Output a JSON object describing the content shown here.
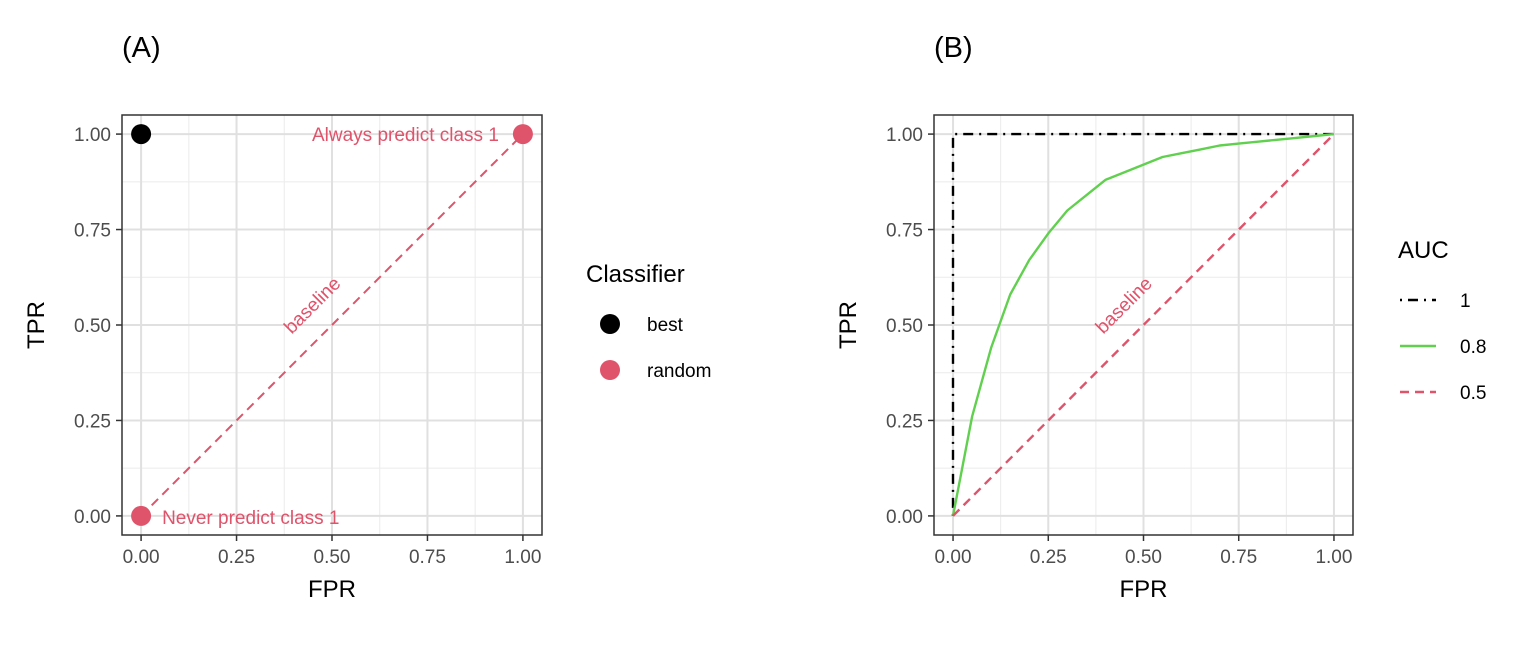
{
  "chart_data": [
    {
      "type": "scatter",
      "panel_tag": "(A)",
      "xlabel": "FPR",
      "ylabel": "TPR",
      "xlim": [
        -0.05,
        1.05
      ],
      "ylim": [
        -0.05,
        1.05
      ],
      "x_ticks": [
        "0.00",
        "0.25",
        "0.50",
        "0.75",
        "1.00"
      ],
      "y_ticks": [
        "0.00",
        "0.25",
        "0.50",
        "0.75",
        "1.00"
      ],
      "grid": true,
      "legend": {
        "title": "Classifier",
        "position": "right",
        "entries": [
          {
            "label": "best",
            "color": "#000000"
          },
          {
            "label": "random",
            "color": "#DF536B"
          }
        ]
      },
      "points": [
        {
          "x": 0,
          "y": 1,
          "series": "best",
          "color": "#000000"
        },
        {
          "x": 1,
          "y": 1,
          "series": "random",
          "color": "#DF536B"
        },
        {
          "x": 0,
          "y": 0,
          "series": "random",
          "color": "#DF536B"
        }
      ],
      "baseline": {
        "from": [
          0,
          0
        ],
        "to": [
          1,
          1
        ],
        "style": "dashed",
        "color": "#DF536B"
      },
      "annotations": [
        {
          "text": "Always predict class 1",
          "x": 1,
          "y": 1,
          "anchor": "end",
          "color": "#DF536B"
        },
        {
          "text": "Never predict class 1",
          "x": 0,
          "y": 0,
          "anchor": "start",
          "color": "#DF536B"
        },
        {
          "text": "baseline",
          "x": 0.46,
          "y": 0.54,
          "rotate": -45,
          "color": "#DF536B"
        }
      ]
    },
    {
      "type": "line",
      "panel_tag": "(B)",
      "xlabel": "FPR",
      "ylabel": "TPR",
      "xlim": [
        -0.05,
        1.05
      ],
      "ylim": [
        -0.05,
        1.05
      ],
      "x_ticks": [
        "0.00",
        "0.25",
        "0.50",
        "0.75",
        "1.00"
      ],
      "y_ticks": [
        "0.00",
        "0.25",
        "0.50",
        "0.75",
        "1.00"
      ],
      "grid": true,
      "legend": {
        "title": "AUC",
        "position": "right",
        "entries": [
          {
            "label": "1",
            "color": "#000000",
            "style": "dotdash"
          },
          {
            "label": "0.8",
            "color": "#61D04F",
            "style": "solid"
          },
          {
            "label": "0.5",
            "color": "#DF536B",
            "style": "dashed"
          }
        ]
      },
      "series": [
        {
          "name": "1",
          "color": "#000000",
          "style": "dotdash",
          "x": [
            0,
            0,
            1
          ],
          "y": [
            0,
            1,
            1
          ]
        },
        {
          "name": "0.8",
          "color": "#61D04F",
          "style": "solid",
          "x": [
            0,
            0.05,
            0.1,
            0.15,
            0.2,
            0.25,
            0.3,
            0.35,
            0.4,
            0.45,
            0.5,
            0.55,
            0.6,
            0.65,
            0.7,
            0.75,
            0.8,
            0.85,
            0.9,
            0.95,
            1
          ],
          "y": [
            0,
            0.26,
            0.44,
            0.58,
            0.67,
            0.74,
            0.8,
            0.84,
            0.88,
            0.9,
            0.92,
            0.94,
            0.95,
            0.96,
            0.97,
            0.975,
            0.98,
            0.985,
            0.99,
            0.995,
            1
          ]
        },
        {
          "name": "0.5",
          "color": "#DF536B",
          "style": "dashed",
          "x": [
            0,
            1
          ],
          "y": [
            0,
            1
          ]
        }
      ],
      "annotations": [
        {
          "text": "baseline",
          "x": 0.46,
          "y": 0.54,
          "rotate": -45,
          "color": "#DF536B"
        }
      ]
    }
  ]
}
